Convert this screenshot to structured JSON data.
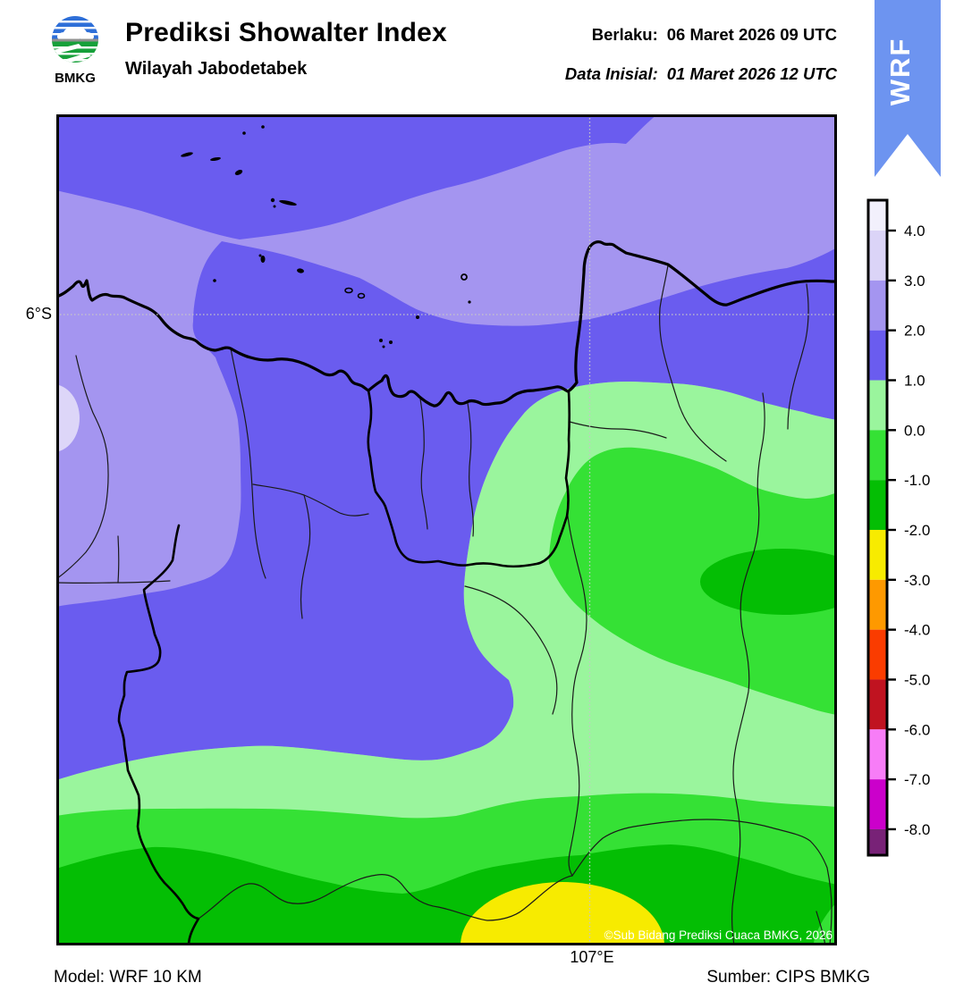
{
  "header": {
    "logo_text": "BMKG",
    "title": "Prediksi Showalter Index",
    "subtitle": "Wilayah Jabodetabek",
    "valid_label": "Berlaku:",
    "valid_value": "06 Maret 2026 09 UTC",
    "init_label": "Data Inisial:",
    "init_value": "01 Maret 2026 12 UTC",
    "ribbon_text": "WRF",
    "ribbon_color": "#6D94F0"
  },
  "map": {
    "lat_label": "6°S",
    "lon_label": "107°E",
    "copyright": "©Sub Bidang Prediksi Cuaca BMKG, 2026",
    "fill_colors": {
      "si_3_4": "#DDD6F8",
      "si_2_3": "#A495F0",
      "si_1_2": "#6A5CEF",
      "si_0_1": "#9AF59D",
      "si_m1_0": "#35E135",
      "si_m2_m1": "#04BE04",
      "si_m3_m2": "#F7EB00"
    }
  },
  "colorbar": {
    "labels": [
      "4.0",
      "3.0",
      "2.0",
      "1.0",
      "0.0",
      "-1.0",
      "-2.0",
      "-3.0",
      "-4.0",
      "-5.0",
      "-6.0",
      "-7.0",
      "-8.0"
    ],
    "levels": [
      4.0,
      3.0,
      2.0,
      1.0,
      0.0,
      -1.0,
      -2.0,
      -3.0,
      -4.0,
      -5.0,
      -6.0,
      -7.0,
      -8.0
    ],
    "colors": [
      "#F2F0FC",
      "#DBD4F7",
      "#A495F0",
      "#6A5CEF",
      "#9AF59D",
      "#35E135",
      "#04BE04",
      "#F7EB00",
      "#FE9900",
      "#FA3C00",
      "#C01320",
      "#F77DF7",
      "#CB00CB",
      "#782277"
    ]
  },
  "footer": {
    "model": "Model: WRF 10 KM",
    "source": "Sumber: CIPS BMKG"
  }
}
